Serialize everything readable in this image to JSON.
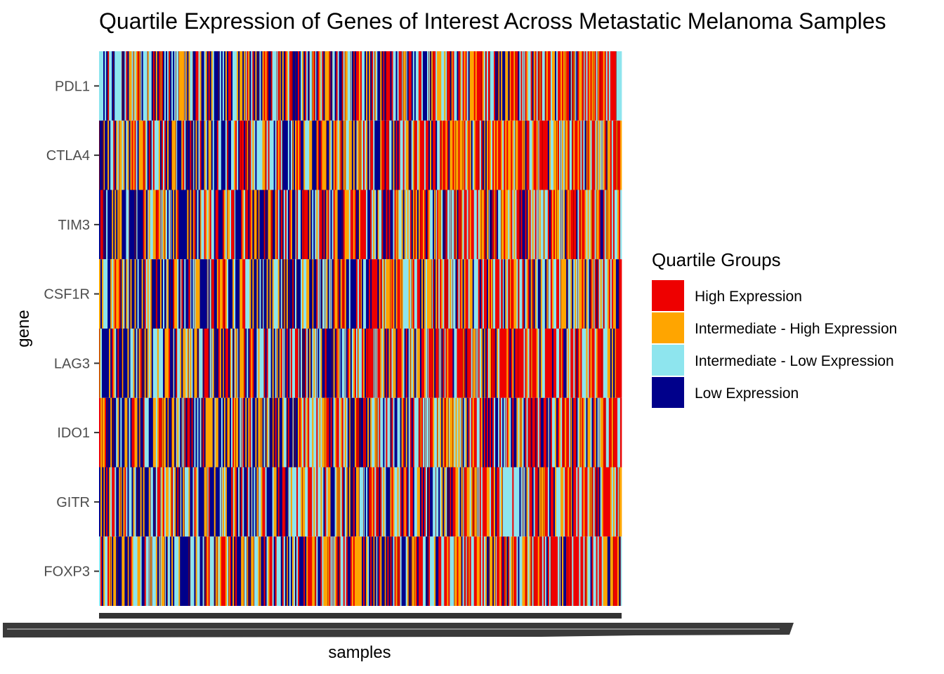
{
  "chart_data": {
    "type": "heatmap",
    "title": "Quartile Expression of Genes of Interest Across Metastatic Melanoma Samples",
    "xlabel": "samples",
    "ylabel": "gene",
    "genes": [
      "PDL1",
      "CTLA4",
      "TIM3",
      "CSF1R",
      "LAG3",
      "IDO1",
      "GITR",
      "FOXP3"
    ],
    "sample_count": 368,
    "legend": {
      "title": "Quartile Groups",
      "placement": "right",
      "entries": [
        {
          "label": "High Expression",
          "color": "#ee0000"
        },
        {
          "label": "Intermediate - High Expression",
          "color": "#ffa500"
        },
        {
          "label": "Intermediate - Low Expression",
          "color": "#8ee5ee"
        },
        {
          "label": "Low Expression",
          "color": "#00008b"
        }
      ]
    },
    "grid": false,
    "note_values": "Each cell is one sample's quartile group for the gene; sample-level values are not individually legible."
  },
  "colors": {
    "High Expression": "#ee0000",
    "Intermediate - High Expression": "#ffa500",
    "Intermediate - Low Expression": "#8ee5ee",
    "Low Expression": "#00008b",
    "separator": "#8b0000",
    "axis": "#333333"
  }
}
